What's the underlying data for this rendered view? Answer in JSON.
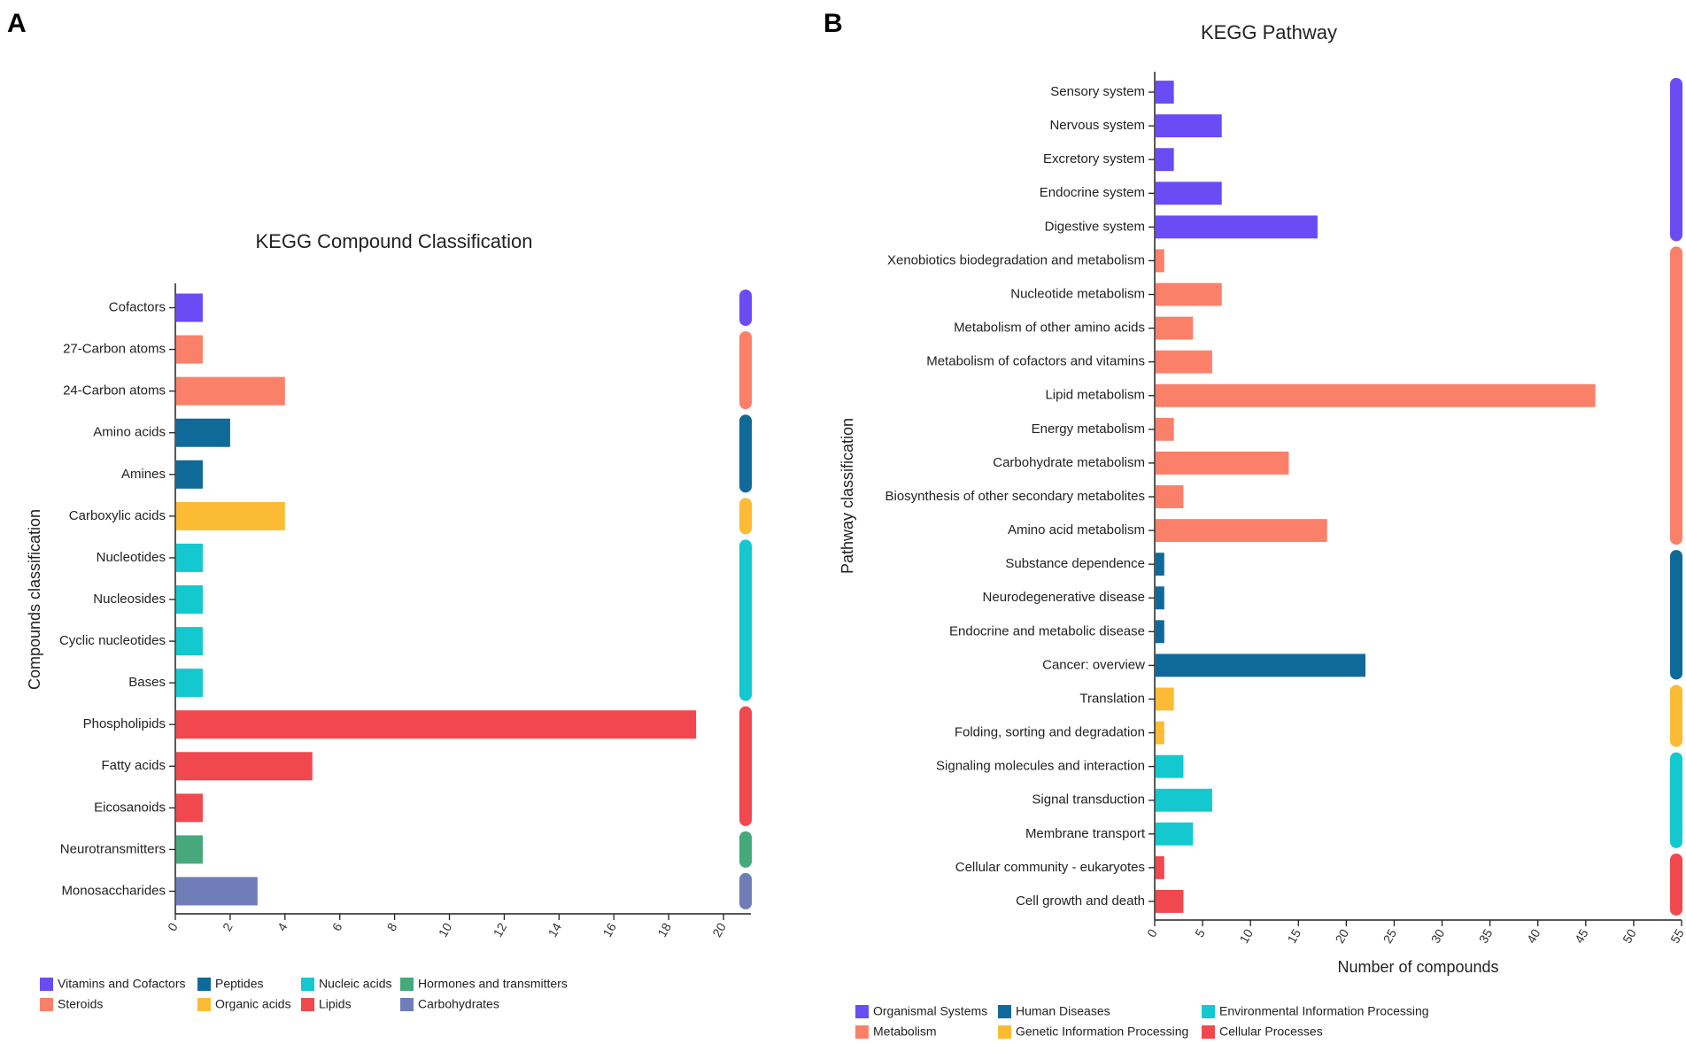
{
  "panel_labels": [
    "A",
    "B"
  ],
  "chart_data": [
    {
      "type": "bar",
      "orientation": "horizontal",
      "title": "KEGG Compound Classification",
      "xlabel": "",
      "ylabel": "Compounds classification",
      "xlim": [
        0,
        21
      ],
      "xticks": [
        0,
        2,
        4,
        6,
        8,
        10,
        12,
        14,
        16,
        18,
        20
      ],
      "categories": [
        "Cofactors",
        "27-Carbon atoms",
        "24-Carbon atoms",
        "Amino acids",
        "Amines",
        "Carboxylic acids",
        "Nucleotides",
        "Nucleosides",
        "Cyclic nucleotides",
        "Bases",
        "Phospholipids",
        "Fatty acids",
        "Eicosanoids",
        "Neurotransmitters",
        "Monosaccharides"
      ],
      "values": [
        1,
        1,
        4,
        2,
        1,
        4,
        1,
        1,
        1,
        1,
        19,
        5,
        1,
        1,
        3
      ],
      "groups": [
        "Vitamins and Cofactors",
        "Steroids",
        "Steroids",
        "Peptides",
        "Peptides",
        "Organic acids",
        "Nucleic acids",
        "Nucleic acids",
        "Nucleic acids",
        "Nucleic acids",
        "Lipids",
        "Lipids",
        "Lipids",
        "Hormones and transmitters",
        "Carbohydrates"
      ],
      "legend": [
        {
          "name": "Vitamins and Cofactors",
          "color": "#6a4cf5"
        },
        {
          "name": "Peptides",
          "color": "#0f6a9a"
        },
        {
          "name": "Nucleic acids",
          "color": "#13c9cf"
        },
        {
          "name": "Hormones and transmitters",
          "color": "#47a87c"
        },
        {
          "name": "Steroids",
          "color": "#fb806a"
        },
        {
          "name": "Organic acids",
          "color": "#fbbb35"
        },
        {
          "name": "Lipids",
          "color": "#f0484e"
        },
        {
          "name": "Carbohydrates",
          "color": "#6f7db8"
        }
      ],
      "legend_position": "bottom-left"
    },
    {
      "type": "bar",
      "orientation": "horizontal",
      "title": "KEGG Pathway",
      "xlabel": "Number of compounds",
      "ylabel": "Pathway classification",
      "xlim": [
        0,
        55
      ],
      "xticks": [
        0,
        5,
        10,
        15,
        20,
        25,
        30,
        35,
        40,
        45,
        50,
        55
      ],
      "categories": [
        "Sensory system",
        "Nervous system",
        "Excretory system",
        "Endocrine system",
        "Digestive system",
        "Xenobiotics biodegradation and metabolism",
        "Nucleotide metabolism",
        "Metabolism of other amino acids",
        "Metabolism of cofactors and vitamins",
        "Lipid metabolism",
        "Energy metabolism",
        "Carbohydrate metabolism",
        "Biosynthesis of other secondary metabolites",
        "Amino acid metabolism",
        "Substance dependence",
        "Neurodegenerative disease",
        "Endocrine and metabolic disease",
        "Cancer: overview",
        "Translation",
        "Folding, sorting and degradation",
        "Signaling molecules and interaction",
        "Signal transduction",
        "Membrane transport",
        "Cellular community - eukaryotes",
        "Cell growth and death"
      ],
      "values": [
        2,
        7,
        2,
        7,
        17,
        1,
        7,
        4,
        6,
        46,
        2,
        14,
        3,
        18,
        1,
        1,
        1,
        22,
        2,
        1,
        3,
        6,
        4,
        1,
        3
      ],
      "groups": [
        "Organismal Systems",
        "Organismal Systems",
        "Organismal Systems",
        "Organismal Systems",
        "Organismal Systems",
        "Metabolism",
        "Metabolism",
        "Metabolism",
        "Metabolism",
        "Metabolism",
        "Metabolism",
        "Metabolism",
        "Metabolism",
        "Metabolism",
        "Human Diseases",
        "Human Diseases",
        "Human Diseases",
        "Human Diseases",
        "Genetic Information Processing",
        "Genetic Information Processing",
        "Environmental Information Processing",
        "Environmental Information Processing",
        "Environmental Information Processing",
        "Cellular Processes",
        "Cellular Processes"
      ],
      "legend": [
        {
          "name": "Organismal Systems",
          "color": "#6a4cf5"
        },
        {
          "name": "Human Diseases",
          "color": "#0f6a9a"
        },
        {
          "name": "Environmental Information Processing",
          "color": "#13c9cf"
        },
        {
          "name": "Metabolism",
          "color": "#fb806a"
        },
        {
          "name": "Genetic Information Processing",
          "color": "#fbbb35"
        },
        {
          "name": "Cellular Processes",
          "color": "#f0484e"
        }
      ],
      "legend_position": "bottom-left"
    }
  ]
}
